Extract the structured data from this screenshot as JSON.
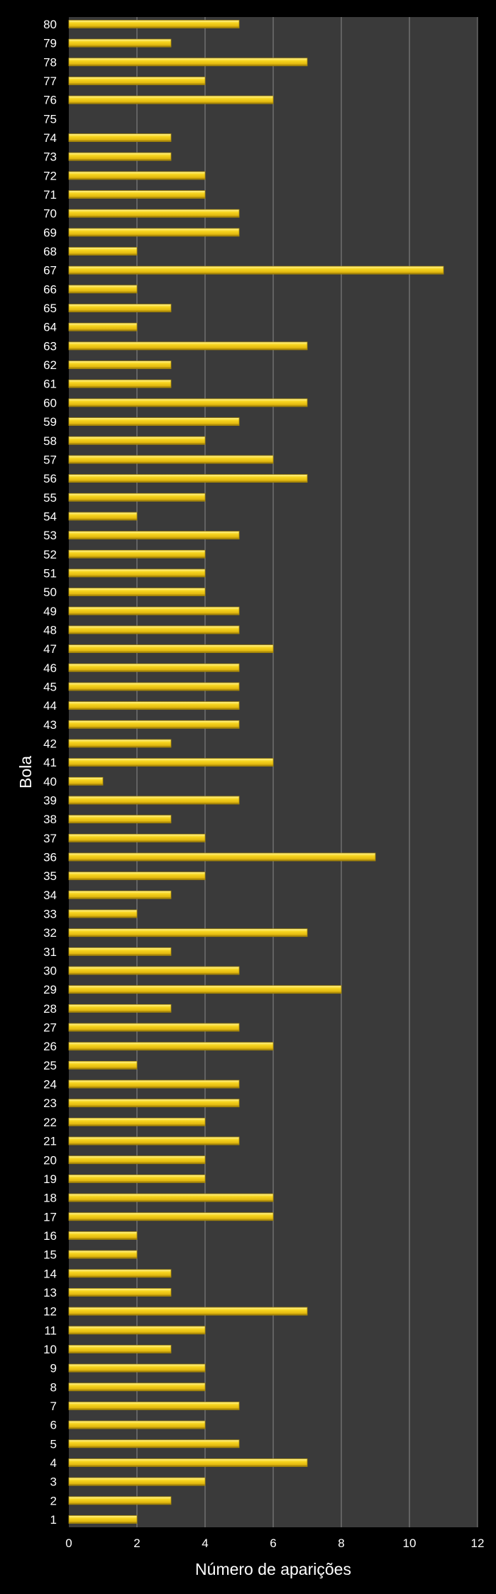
{
  "chart_data": {
    "type": "bar",
    "orientation": "horizontal",
    "title": "",
    "xlabel": "Número de aparições",
    "ylabel": "Bola",
    "xlim": [
      0,
      12
    ],
    "xticks": [
      0,
      2,
      4,
      6,
      8,
      10,
      12
    ],
    "grid": "vertical",
    "legend": "none",
    "colors": {
      "background": "#000000",
      "plot_area": "#3a3a3a",
      "gridline": "#8a8a8a",
      "bar_fill": "#f2cd1c",
      "bar_highlight": "#fff27a",
      "bar_shadow": "#a88a0a",
      "text": "#ffffff"
    },
    "categories": [
      "1",
      "2",
      "3",
      "4",
      "5",
      "6",
      "7",
      "8",
      "9",
      "10",
      "11",
      "12",
      "13",
      "14",
      "15",
      "16",
      "17",
      "18",
      "19",
      "20",
      "21",
      "22",
      "23",
      "24",
      "25",
      "26",
      "27",
      "28",
      "29",
      "30",
      "31",
      "32",
      "33",
      "34",
      "35",
      "36",
      "37",
      "38",
      "39",
      "40",
      "41",
      "42",
      "43",
      "44",
      "45",
      "46",
      "47",
      "48",
      "49",
      "50",
      "51",
      "52",
      "53",
      "54",
      "55",
      "56",
      "57",
      "58",
      "59",
      "60",
      "61",
      "62",
      "63",
      "64",
      "65",
      "66",
      "67",
      "68",
      "69",
      "70",
      "71",
      "72",
      "73",
      "74",
      "75",
      "76",
      "77",
      "78",
      "79",
      "80"
    ],
    "values": [
      2,
      3,
      4,
      7,
      5,
      4,
      5,
      4,
      4,
      3,
      4,
      7,
      3,
      3,
      2,
      2,
      6,
      6,
      4,
      4,
      5,
      4,
      5,
      5,
      2,
      6,
      5,
      3,
      8,
      5,
      3,
      7,
      2,
      3,
      4,
      9,
      4,
      3,
      5,
      1,
      6,
      3,
      5,
      5,
      5,
      5,
      6,
      5,
      5,
      4,
      4,
      4,
      5,
      2,
      4,
      7,
      6,
      4,
      5,
      7,
      3,
      3,
      7,
      2,
      3,
      2,
      11,
      2,
      5,
      5,
      4,
      4,
      3,
      3,
      0,
      6,
      4,
      7,
      3,
      5
    ]
  }
}
